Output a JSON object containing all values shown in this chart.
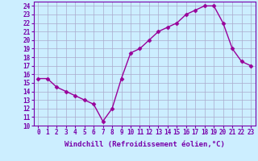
{
  "x": [
    0,
    1,
    2,
    3,
    4,
    5,
    6,
    7,
    8,
    9,
    10,
    11,
    12,
    13,
    14,
    15,
    16,
    17,
    18,
    19,
    20,
    21,
    22,
    23
  ],
  "y": [
    15.5,
    15.5,
    14.5,
    14.0,
    13.5,
    13.0,
    12.5,
    10.5,
    12.0,
    15.5,
    18.5,
    19.0,
    20.0,
    21.0,
    21.5,
    22.0,
    23.0,
    23.5,
    24.0,
    24.0,
    22.0,
    19.0,
    17.5,
    17.0
  ],
  "line_color": "#990099",
  "marker": "D",
  "markersize": 2.5,
  "linewidth": 1.0,
  "bg_color": "#cceeff",
  "grid_color": "#aaaacc",
  "xlabel": "Windchill (Refroidissement éolien,°C)",
  "xlabel_fontsize": 6.5,
  "ylim": [
    10,
    24.5
  ],
  "xlim": [
    -0.5,
    23.5
  ],
  "yticks": [
    10,
    11,
    12,
    13,
    14,
    15,
    16,
    17,
    18,
    19,
    20,
    21,
    22,
    23,
    24
  ],
  "xticks": [
    0,
    1,
    2,
    3,
    4,
    5,
    6,
    7,
    8,
    9,
    10,
    11,
    12,
    13,
    14,
    15,
    16,
    17,
    18,
    19,
    20,
    21,
    22,
    23
  ],
  "tick_fontsize": 5.5,
  "spine_color": "#7700aa"
}
